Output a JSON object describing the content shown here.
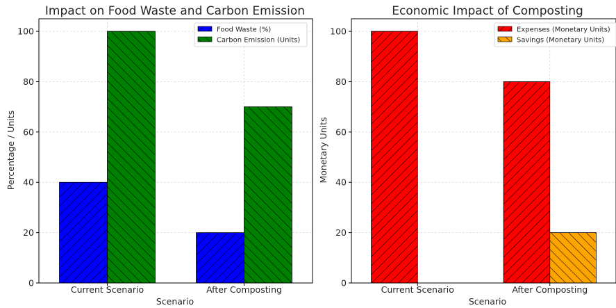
{
  "chart_data": [
    {
      "type": "bar",
      "title": "Impact on Food Waste and Carbon Emission",
      "xlabel": "Scenario",
      "ylabel": "Percentage / Units",
      "categories": [
        "Current Scenario",
        "After Composting"
      ],
      "series": [
        {
          "name": "Food Waste (%)",
          "values": [
            40,
            20
          ],
          "color": "#0000ff",
          "hatch": "forward"
        },
        {
          "name": "Carbon Emission (Units)",
          "values": [
            100,
            70
          ],
          "color": "#008000",
          "hatch": "backward"
        }
      ],
      "ylim": [
        0,
        105
      ],
      "yticks": [
        0,
        20,
        40,
        60,
        80,
        100
      ],
      "grid": true,
      "legend_position": "top-right"
    },
    {
      "type": "bar",
      "title": "Economic Impact of Composting",
      "xlabel": "Scenario",
      "ylabel": "Monetary Units",
      "categories": [
        "Current Scenario",
        "After Composting"
      ],
      "series": [
        {
          "name": "Expenses (Monetary Units)",
          "values": [
            100,
            80
          ],
          "color": "#ff0000",
          "hatch": "forward"
        },
        {
          "name": "Savings (Monetary Units)",
          "values": [
            0,
            20
          ],
          "color": "#ffa500",
          "hatch": "backward"
        }
      ],
      "ylim": [
        0,
        105
      ],
      "yticks": [
        0,
        20,
        40,
        60,
        80,
        100
      ],
      "grid": true,
      "legend_position": "top-right"
    }
  ]
}
